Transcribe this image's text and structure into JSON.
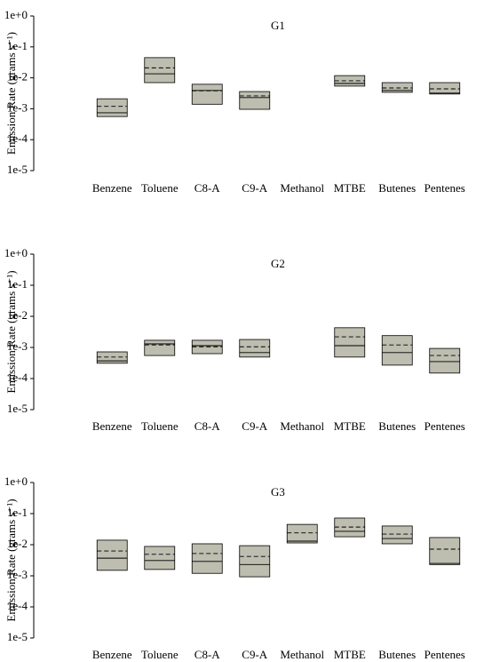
{
  "chart_data": [
    {
      "type": "box",
      "title": "G1",
      "ylabel": "Emission Rate (grams s⁻¹)",
      "categories": [
        "Benzene",
        "Toluene",
        "C8-A",
        "C9-A",
        "Methanol",
        "MTBE",
        "Butenes",
        "Pentenes"
      ],
      "q1": [
        0.00056,
        0.007,
        0.0014,
        0.00096,
        null,
        0.0054,
        0.0034,
        0.003
      ],
      "median": [
        0.00074,
        0.0135,
        0.0039,
        0.0023,
        null,
        0.0066,
        0.0039,
        0.0032
      ],
      "mean": [
        0.0012,
        0.021,
        0.0038,
        0.0026,
        null,
        0.008,
        0.0047,
        0.0044
      ],
      "q3": [
        0.0021,
        0.045,
        0.0062,
        0.0036,
        null,
        0.0118,
        0.007,
        0.007
      ],
      "color": "#bdbdb0",
      "log": true,
      "ylim": [
        1e-05,
        1
      ],
      "yticks": [
        {
          "value": 1,
          "label": "1e+0"
        },
        {
          "value": 0.1,
          "label": "1e-1"
        },
        {
          "value": 0.01,
          "label": "1e-2"
        },
        {
          "value": 0.001,
          "label": "1e-3"
        },
        {
          "value": 0.0001,
          "label": "1e-4"
        },
        {
          "value": 1e-05,
          "label": "1e-5"
        }
      ]
    },
    {
      "type": "box",
      "title": "G2",
      "ylabel": "Emission Rate (grams s⁻¹)",
      "categories": [
        "Benzene",
        "Toluene",
        "C8-A",
        "C9-A",
        "Methanol",
        "MTBE",
        "Butenes",
        "Pentenes"
      ],
      "q1": [
        0.00031,
        0.00055,
        0.00063,
        0.00049,
        null,
        0.00049,
        0.00027,
        0.00015
      ],
      "median": [
        0.00037,
        0.0013,
        0.00114,
        0.00068,
        null,
        0.00114,
        0.00068,
        0.00035
      ],
      "mean": [
        0.00049,
        0.0012,
        0.00105,
        0.00105,
        null,
        0.0022,
        0.0012,
        0.00055
      ],
      "q3": [
        0.00072,
        0.0017,
        0.0017,
        0.0018,
        null,
        0.0043,
        0.0024,
        0.00093
      ],
      "color": "#bdbdb0",
      "log": true,
      "ylim": [
        1e-05,
        1
      ],
      "yticks": [
        {
          "value": 1,
          "label": "1e+0"
        },
        {
          "value": 0.1,
          "label": "1e-1"
        },
        {
          "value": 0.01,
          "label": "1e-2"
        },
        {
          "value": 0.001,
          "label": "1e-3"
        },
        {
          "value": 0.0001,
          "label": "1e-4"
        },
        {
          "value": 1e-05,
          "label": "1e-5"
        }
      ]
    },
    {
      "type": "box",
      "title": "G3",
      "ylabel": "Emission Rate (grams s⁻¹)",
      "categories": [
        "Benzene",
        "Toluene",
        "C8-A",
        "C9-A",
        "Methanol",
        "MTBE",
        "Butenes",
        "Pentenes"
      ],
      "q1": [
        0.0015,
        0.0016,
        0.0012,
        0.00093,
        0.0114,
        0.018,
        0.0107,
        0.0023
      ],
      "median": [
        0.0037,
        0.0031,
        0.0029,
        0.0023,
        0.013,
        0.027,
        0.0158,
        0.0025
      ],
      "mean": [
        0.0063,
        0.0049,
        0.0052,
        0.0042,
        0.024,
        0.037,
        0.022,
        0.0072
      ],
      "q3": [
        0.014,
        0.0088,
        0.0107,
        0.0093,
        0.045,
        0.072,
        0.04,
        0.017
      ],
      "color": "#bdbdb0",
      "log": true,
      "ylim": [
        1e-05,
        1
      ],
      "yticks": [
        {
          "value": 1,
          "label": "1e+0"
        },
        {
          "value": 0.1,
          "label": "1e-1"
        },
        {
          "value": 0.01,
          "label": "1e-2"
        },
        {
          "value": 0.001,
          "label": "1e-3"
        },
        {
          "value": 0.0001,
          "label": "1e-4"
        },
        {
          "value": 1e-05,
          "label": "1e-5"
        }
      ]
    }
  ]
}
